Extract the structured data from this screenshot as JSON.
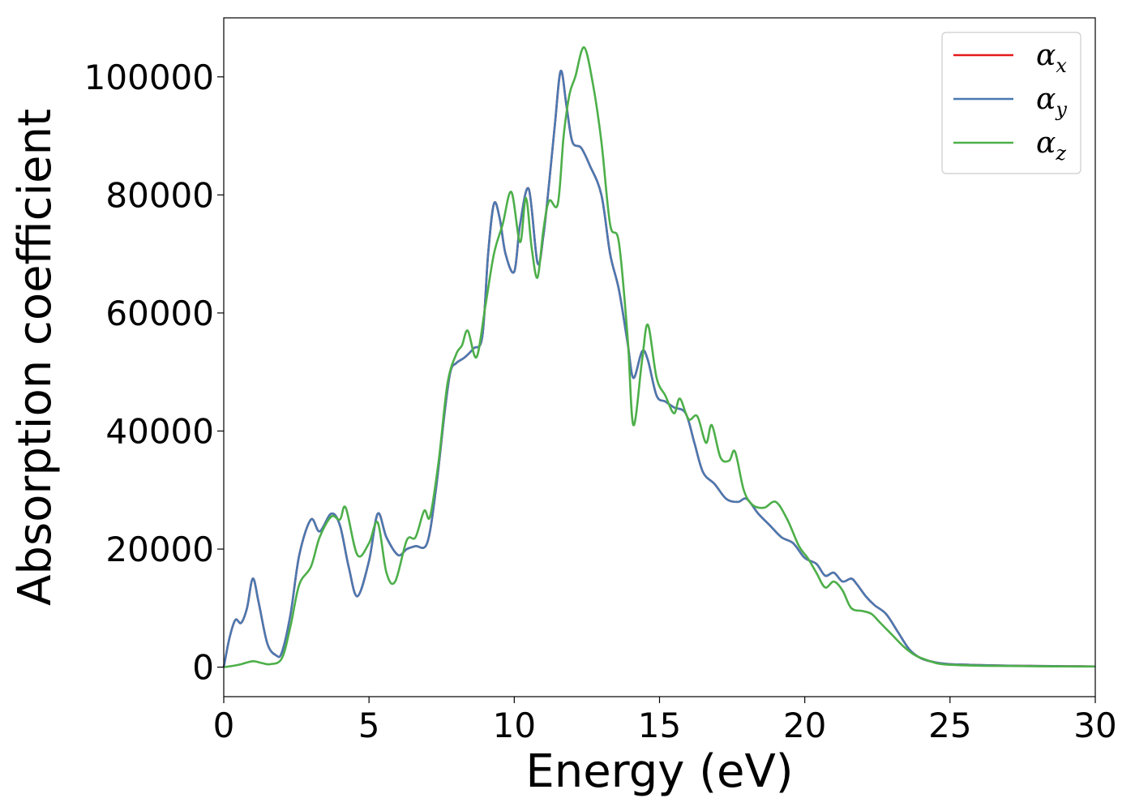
{
  "chart_data": {
    "type": "line",
    "xlabel": "Energy (eV)",
    "ylabel": "Absorption coefficient",
    "xlim": [
      0,
      30
    ],
    "ylim": [
      -5000,
      110000
    ],
    "xticks": [
      0,
      5,
      10,
      15,
      20,
      25,
      30
    ],
    "xtick_labels": [
      "0",
      "5",
      "10",
      "15",
      "20",
      "25",
      "30"
    ],
    "yticks": [
      0,
      20000,
      40000,
      60000,
      80000,
      100000
    ],
    "ytick_labels": [
      "0",
      "20000",
      "40000",
      "60000",
      "80000",
      "100000"
    ],
    "grid": false,
    "legend_position": "top-right",
    "series": [
      {
        "name": "α_x",
        "label_base": "α",
        "label_sub": "x",
        "color": "#e41a1c",
        "x": [
          0,
          0.2,
          0.4,
          0.6,
          0.8,
          1.0,
          1.2,
          1.5,
          1.8,
          2.0,
          2.3,
          2.6,
          3.0,
          3.3,
          3.7,
          4.0,
          4.3,
          4.6,
          5.0,
          5.3,
          5.6,
          6.0,
          6.3,
          6.6,
          7.0,
          7.3,
          7.6,
          7.8,
          8.0,
          8.3,
          8.6,
          8.9,
          9.1,
          9.3,
          9.5,
          9.7,
          10.0,
          10.2,
          10.5,
          10.8,
          11.0,
          11.2,
          11.4,
          11.6,
          11.8,
          12.0,
          12.3,
          12.6,
          13.0,
          13.3,
          13.6,
          13.9,
          14.1,
          14.4,
          14.6,
          14.9,
          15.2,
          15.5,
          15.9,
          16.2,
          16.5,
          16.9,
          17.3,
          17.7,
          18.0,
          18.4,
          18.8,
          19.2,
          19.6,
          20.0,
          20.4,
          20.7,
          21.0,
          21.3,
          21.6,
          21.8,
          22.1,
          22.4,
          22.8,
          23.2,
          23.6,
          24.0,
          24.5,
          25.0,
          26.0,
          27.0,
          28.0,
          29.0,
          30.0
        ],
        "y": [
          0,
          5000,
          8000,
          7500,
          10000,
          15000,
          11000,
          4000,
          2000,
          2500,
          9000,
          19000,
          25000,
          23000,
          26000,
          24000,
          17000,
          12000,
          18000,
          26000,
          22000,
          19000,
          20000,
          20500,
          21000,
          30000,
          43000,
          50000,
          51500,
          52500,
          54000,
          56000,
          70000,
          78500,
          76000,
          70000,
          67000,
          75000,
          81000,
          68500,
          73000,
          82000,
          92000,
          101000,
          95000,
          89000,
          88000,
          85000,
          80000,
          70000,
          64000,
          55000,
          49000,
          53500,
          52000,
          46000,
          45000,
          44000,
          43000,
          38000,
          33000,
          31000,
          28500,
          28000,
          28500,
          26000,
          24000,
          22000,
          21000,
          18500,
          17500,
          15500,
          16000,
          14500,
          15000,
          14000,
          12000,
          10500,
          9000,
          6000,
          3000,
          1500,
          800,
          500,
          350,
          250,
          200,
          150,
          120
        ]
      },
      {
        "name": "α_y",
        "label_base": "α",
        "label_sub": "y",
        "color": "#4a79b1",
        "x": [
          0,
          0.2,
          0.4,
          0.6,
          0.8,
          1.0,
          1.2,
          1.5,
          1.8,
          2.0,
          2.3,
          2.6,
          3.0,
          3.3,
          3.7,
          4.0,
          4.3,
          4.6,
          5.0,
          5.3,
          5.6,
          6.0,
          6.3,
          6.6,
          7.0,
          7.3,
          7.6,
          7.8,
          8.0,
          8.3,
          8.6,
          8.9,
          9.1,
          9.3,
          9.5,
          9.7,
          10.0,
          10.2,
          10.5,
          10.8,
          11.0,
          11.2,
          11.4,
          11.6,
          11.8,
          12.0,
          12.3,
          12.6,
          13.0,
          13.3,
          13.6,
          13.9,
          14.1,
          14.4,
          14.6,
          14.9,
          15.2,
          15.5,
          15.9,
          16.2,
          16.5,
          16.9,
          17.3,
          17.7,
          18.0,
          18.4,
          18.8,
          19.2,
          19.6,
          20.0,
          20.4,
          20.7,
          21.0,
          21.3,
          21.6,
          21.8,
          22.1,
          22.4,
          22.8,
          23.2,
          23.6,
          24.0,
          24.5,
          25.0,
          26.0,
          27.0,
          28.0,
          29.0,
          30.0
        ],
        "y": [
          0,
          5000,
          8000,
          7500,
          10000,
          15000,
          11000,
          4000,
          2000,
          2500,
          9000,
          19000,
          25000,
          23000,
          26000,
          24000,
          17000,
          12000,
          18000,
          26000,
          22000,
          19000,
          20000,
          20500,
          21000,
          30000,
          43000,
          50000,
          51500,
          52500,
          54000,
          56000,
          70000,
          78500,
          76000,
          70000,
          67000,
          75000,
          81000,
          68500,
          73000,
          82000,
          92000,
          101000,
          95000,
          89000,
          88000,
          85000,
          80000,
          70000,
          64000,
          55000,
          49000,
          53500,
          52000,
          46000,
          45000,
          44000,
          43000,
          38000,
          33000,
          31000,
          28500,
          28000,
          28500,
          26000,
          24000,
          22000,
          21000,
          18500,
          17500,
          15500,
          16000,
          14500,
          15000,
          14000,
          12000,
          10500,
          9000,
          6000,
          3000,
          1500,
          800,
          500,
          350,
          250,
          200,
          150,
          120
        ]
      },
      {
        "name": "α_z",
        "label_base": "α",
        "label_sub": "z",
        "color": "#4daf4a",
        "x": [
          0,
          0.3,
          0.6,
          1.0,
          1.3,
          1.6,
          2.0,
          2.3,
          2.6,
          3.0,
          3.3,
          3.7,
          4.0,
          4.2,
          4.6,
          5.0,
          5.3,
          5.6,
          5.9,
          6.3,
          6.6,
          6.9,
          7.1,
          7.4,
          7.7,
          8.0,
          8.2,
          8.4,
          8.7,
          9.0,
          9.3,
          9.6,
          9.9,
          10.2,
          10.4,
          10.6,
          10.8,
          11.0,
          11.2,
          11.5,
          11.7,
          11.9,
          12.1,
          12.4,
          12.7,
          13.0,
          13.3,
          13.6,
          13.9,
          14.1,
          14.4,
          14.6,
          14.9,
          15.2,
          15.5,
          15.7,
          16.0,
          16.3,
          16.6,
          16.8,
          17.1,
          17.4,
          17.6,
          17.9,
          18.2,
          18.6,
          19.0,
          19.4,
          19.8,
          20.1,
          20.4,
          20.7,
          21.0,
          21.3,
          21.6,
          22.0,
          22.3,
          22.6,
          23.0,
          23.4,
          23.8,
          24.2,
          24.6,
          25.0,
          26.0,
          27.0,
          28.0,
          29.0,
          30.0
        ],
        "y": [
          0,
          200,
          500,
          1000,
          700,
          500,
          1500,
          7000,
          14000,
          17000,
          22000,
          25500,
          25000,
          27000,
          19000,
          21000,
          24500,
          16000,
          14500,
          21500,
          22000,
          26500,
          25500,
          35000,
          48000,
          53000,
          54500,
          57000,
          52500,
          61000,
          70000,
          75000,
          80500,
          72000,
          79500,
          71000,
          66000,
          74000,
          79000,
          78500,
          90000,
          97000,
          100000,
          105000,
          99000,
          89000,
          75000,
          72000,
          56000,
          41000,
          52000,
          58000,
          49000,
          46000,
          43000,
          45500,
          42000,
          42500,
          38000,
          41000,
          35500,
          35000,
          36500,
          30000,
          27500,
          27000,
          28000,
          25000,
          20500,
          18500,
          16000,
          13500,
          14500,
          13000,
          10000,
          9500,
          9000,
          7500,
          5500,
          3500,
          2000,
          1200,
          600,
          400,
          250,
          200,
          150,
          120,
          100
        ]
      }
    ]
  }
}
